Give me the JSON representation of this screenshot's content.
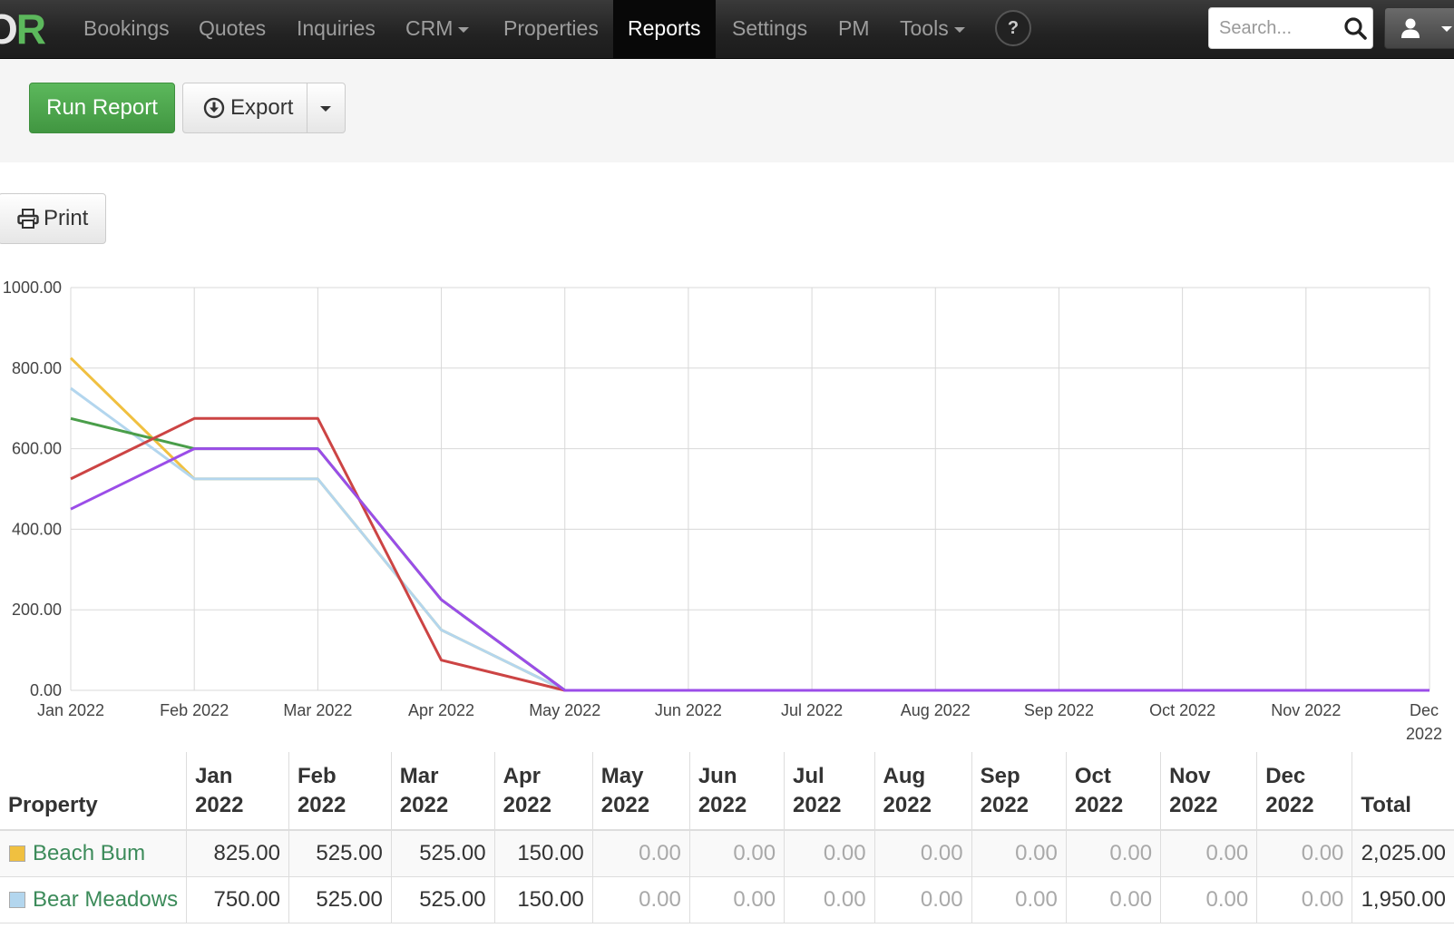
{
  "nav": {
    "brand_o": "O",
    "brand_r": "R",
    "items": [
      "Bookings",
      "Quotes",
      "Inquiries",
      "CRM",
      "Properties",
      "Reports",
      "Settings",
      "PM",
      "Tools"
    ],
    "active": "Reports",
    "help": "?",
    "search_placeholder": "Search..."
  },
  "toolbar": {
    "run_label": "Run Report",
    "export_label": "Export",
    "print_label": "Print"
  },
  "colors": {
    "accent_green": "#5cb85c",
    "navbar": "#222222",
    "link": "#3c8b5a"
  },
  "chart_data": {
    "type": "line",
    "x": [
      "Jan 2022",
      "Feb 2022",
      "Mar 2022",
      "Apr 2022",
      "May 2022",
      "Jun 2022",
      "Jul 2022",
      "Aug 2022",
      "Sep 2022",
      "Oct 2022",
      "Nov 2022",
      "Dec 2022"
    ],
    "ylim": [
      0,
      1000
    ],
    "y_ticks": [
      "1000.00",
      "800.00",
      "600.00",
      "400.00",
      "200.00",
      "0.00"
    ],
    "grid": true,
    "series": [
      {
        "color": "#f0c040",
        "values": [
          825,
          525,
          525,
          150,
          0,
          0,
          0,
          0,
          0,
          0,
          0,
          0
        ]
      },
      {
        "color": "#b3d6ee",
        "values": [
          750,
          525,
          525,
          150,
          0,
          0,
          0,
          0,
          0,
          0,
          0,
          0
        ]
      },
      {
        "color": "#4a9e4a",
        "values": [
          675,
          600,
          600,
          225,
          0,
          0,
          0,
          0,
          0,
          0,
          0,
          0
        ]
      },
      {
        "color": "#cc4444",
        "values": [
          525,
          675,
          675,
          75,
          0,
          0,
          0,
          0,
          0,
          0,
          0,
          0
        ]
      },
      {
        "color": "#9b4de8",
        "values": [
          450,
          600,
          600,
          225,
          0,
          0,
          0,
          0,
          0,
          0,
          0,
          0
        ]
      }
    ]
  },
  "table": {
    "headers": [
      {
        "line1": "",
        "line2": "Property"
      },
      {
        "line1": "Jan",
        "line2": "2022"
      },
      {
        "line1": "Feb",
        "line2": "2022"
      },
      {
        "line1": "Mar",
        "line2": "2022"
      },
      {
        "line1": "Apr",
        "line2": "2022"
      },
      {
        "line1": "May",
        "line2": "2022"
      },
      {
        "line1": "Jun",
        "line2": "2022"
      },
      {
        "line1": "Jul",
        "line2": "2022"
      },
      {
        "line1": "Aug",
        "line2": "2022"
      },
      {
        "line1": "Sep",
        "line2": "2022"
      },
      {
        "line1": "Oct",
        "line2": "2022"
      },
      {
        "line1": "Nov",
        "line2": "2022"
      },
      {
        "line1": "Dec",
        "line2": "2022"
      },
      {
        "line1": "",
        "line2": "Total"
      }
    ],
    "rows": [
      {
        "name": "Beach Bum",
        "color": "#f0c040",
        "values": [
          "825.00",
          "525.00",
          "525.00",
          "150.00",
          "0.00",
          "0.00",
          "0.00",
          "0.00",
          "0.00",
          "0.00",
          "0.00",
          "0.00"
        ],
        "total": "2,025.00"
      },
      {
        "name": "Bear Meadows",
        "color": "#b3d6ee",
        "values": [
          "750.00",
          "525.00",
          "525.00",
          "150.00",
          "0.00",
          "0.00",
          "0.00",
          "0.00",
          "0.00",
          "0.00",
          "0.00",
          "0.00"
        ],
        "total": "1,950.00"
      }
    ]
  }
}
